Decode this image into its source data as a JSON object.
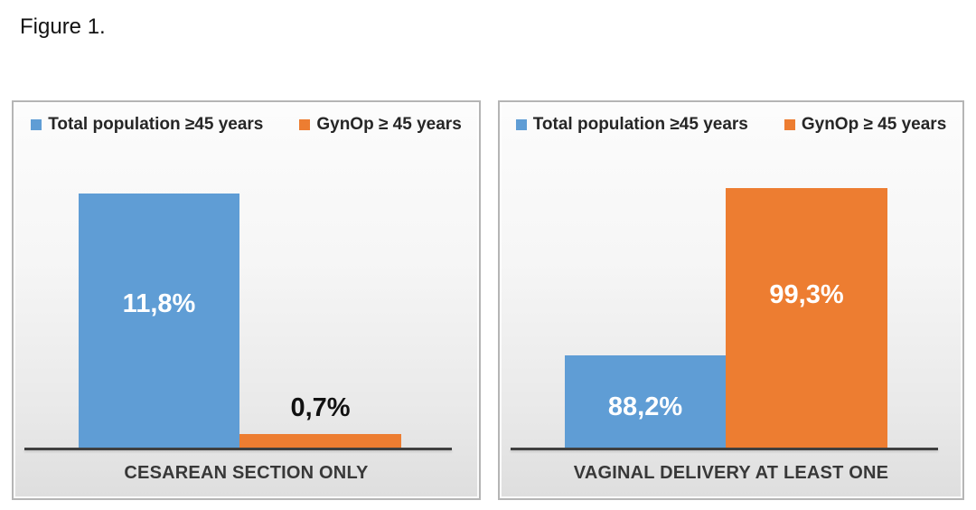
{
  "figure_label": "Figure 1.",
  "colors": {
    "blue": "#5F9DD5",
    "orange": "#ED7D31",
    "axis": "#3F3F3F",
    "panel_border": "#B5B5B5"
  },
  "legend": {
    "items": [
      {
        "label": "Total population ≥45 years",
        "color_key": "blue"
      },
      {
        "label": "GynOp ≥ 45 years",
        "color_key": "orange"
      }
    ]
  },
  "chart_data": [
    {
      "type": "bar",
      "title": "CESAREAN SECTION ONLY",
      "categories": [
        "Total population ≥45 years",
        "GynOp ≥ 45 years"
      ],
      "values": [
        11.8,
        0.7
      ],
      "labels": [
        "11,8%",
        "0,7%"
      ],
      "series_color_keys": [
        "blue",
        "orange"
      ],
      "ylim": [
        0,
        16
      ],
      "grid": false,
      "legend_position": "top",
      "xlabel": "",
      "ylabel": ""
    },
    {
      "type": "bar",
      "title": "VAGINAL DELIVERY AT LEAST ONE",
      "categories": [
        "Total population ≥45 years",
        "GynOp ≥ 45 years"
      ],
      "values": [
        88.2,
        99.3
      ],
      "labels": [
        "88,2%",
        "99,3%"
      ],
      "series_color_keys": [
        "blue",
        "orange"
      ],
      "ylim": [
        82,
        105
      ],
      "grid": false,
      "legend_position": "top",
      "xlabel": "",
      "ylabel": ""
    }
  ]
}
